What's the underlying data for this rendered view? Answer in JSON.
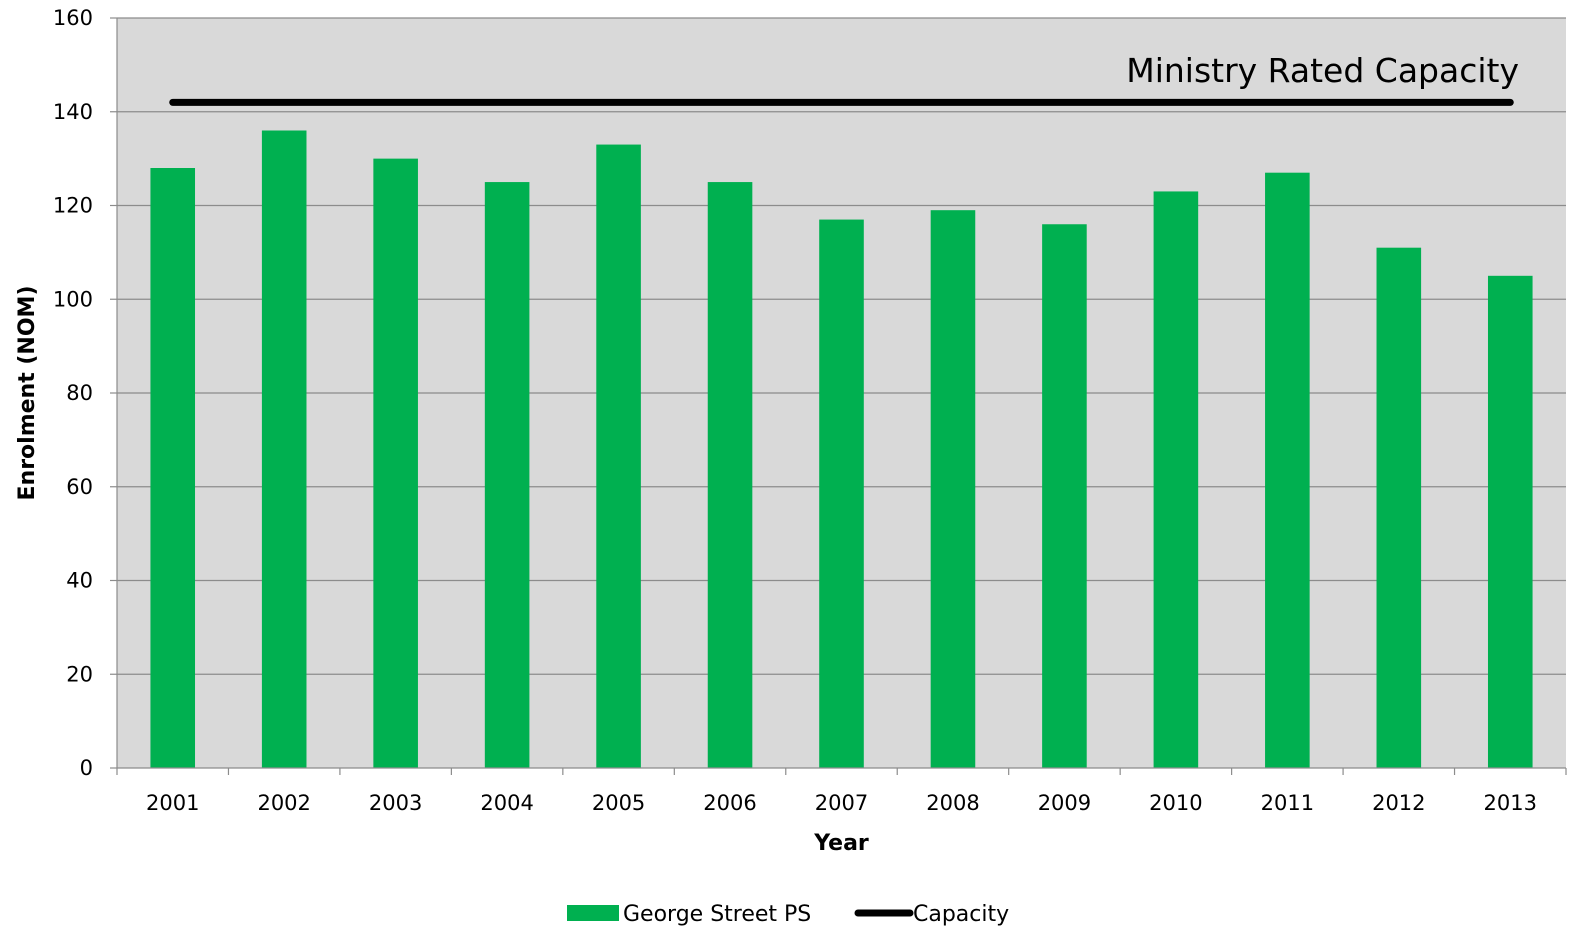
{
  "chart_data": {
    "type": "bar",
    "title": "",
    "xlabel": "Year",
    "ylabel": "Enrolment (NOM)",
    "categories": [
      "2001",
      "2002",
      "2003",
      "2004",
      "2005",
      "2006",
      "2007",
      "2008",
      "2009",
      "2010",
      "2011",
      "2012",
      "2013"
    ],
    "series": [
      {
        "name": "George Street PS",
        "type": "bar",
        "color": "#00b050",
        "values": [
          128,
          136,
          130,
          125,
          133,
          125,
          117,
          119,
          116,
          123,
          127,
          111,
          105
        ]
      },
      {
        "name": "Capacity",
        "type": "line",
        "color": "#000000",
        "values": [
          142,
          142,
          142,
          142,
          142,
          142,
          142,
          142,
          142,
          142,
          142,
          142,
          142
        ]
      }
    ],
    "ylim": [
      0,
      160
    ],
    "yticks": [
      0,
      20,
      40,
      60,
      80,
      100,
      120,
      140,
      160
    ],
    "grid": true,
    "plot_background": "#d9d9d9",
    "annotation": "Ministry Rated Capacity",
    "legend_position": "bottom-center"
  }
}
